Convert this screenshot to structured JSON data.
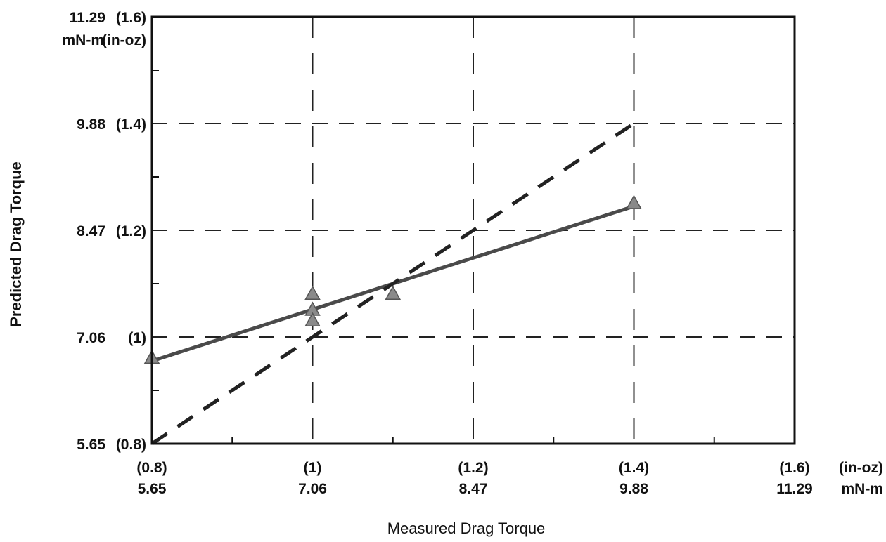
{
  "chart_data": {
    "type": "line",
    "title": "",
    "xlabel": "Measured Drag Torque",
    "ylabel": "Predicted Drag Torque",
    "xlim": [
      0.8,
      1.6
    ],
    "ylim": [
      0.8,
      1.6
    ],
    "grid": true,
    "x_ticks": [
      {
        "value": 0.8,
        "imperial": "(0.8)",
        "metric": "5.65"
      },
      {
        "value": 1.0,
        "imperial": "(1)",
        "metric": "7.06"
      },
      {
        "value": 1.2,
        "imperial": "(1.2)",
        "metric": "8.47"
      },
      {
        "value": 1.4,
        "imperial": "(1.4)",
        "metric": "9.88"
      },
      {
        "value": 1.6,
        "imperial": "(1.6)",
        "metric": "11.29"
      }
    ],
    "x_unit_imperial": "(in-oz)",
    "x_unit_metric": "mN-m",
    "y_ticks": [
      {
        "value": 0.8,
        "metric": "5.65",
        "imperial": "(0.8)"
      },
      {
        "value": 1.0,
        "metric": "7.06",
        "imperial": "(1)"
      },
      {
        "value": 1.2,
        "metric": "8.47",
        "imperial": "(1.2)"
      },
      {
        "value": 1.4,
        "metric": "9.88",
        "imperial": "(1.4)"
      },
      {
        "value": 1.6,
        "metric": "11.29",
        "imperial": "(1.6)"
      }
    ],
    "y_unit_metric": "mN-m",
    "y_unit_imperial": "(in-oz)",
    "series": [
      {
        "style": "solid",
        "x": [
          0.8,
          1.4
        ],
        "y": [
          0.955,
          1.245
        ]
      },
      {
        "style": "dashed",
        "x": [
          0.8,
          1.4
        ],
        "y": [
          0.8,
          1.4
        ]
      },
      {
        "style": "markers",
        "marker": "triangle",
        "x": [
          0.8,
          1.0,
          1.0,
          1.0,
          1.1,
          1.4
        ],
        "y": [
          0.96,
          1.08,
          1.05,
          1.03,
          1.08,
          1.25
        ]
      }
    ],
    "colors": {
      "solid_line": "#4a4a4a",
      "dashed_line": "#222222",
      "marker": "#8a8a8a",
      "grid": "#222222",
      "frame": "#111111"
    }
  }
}
